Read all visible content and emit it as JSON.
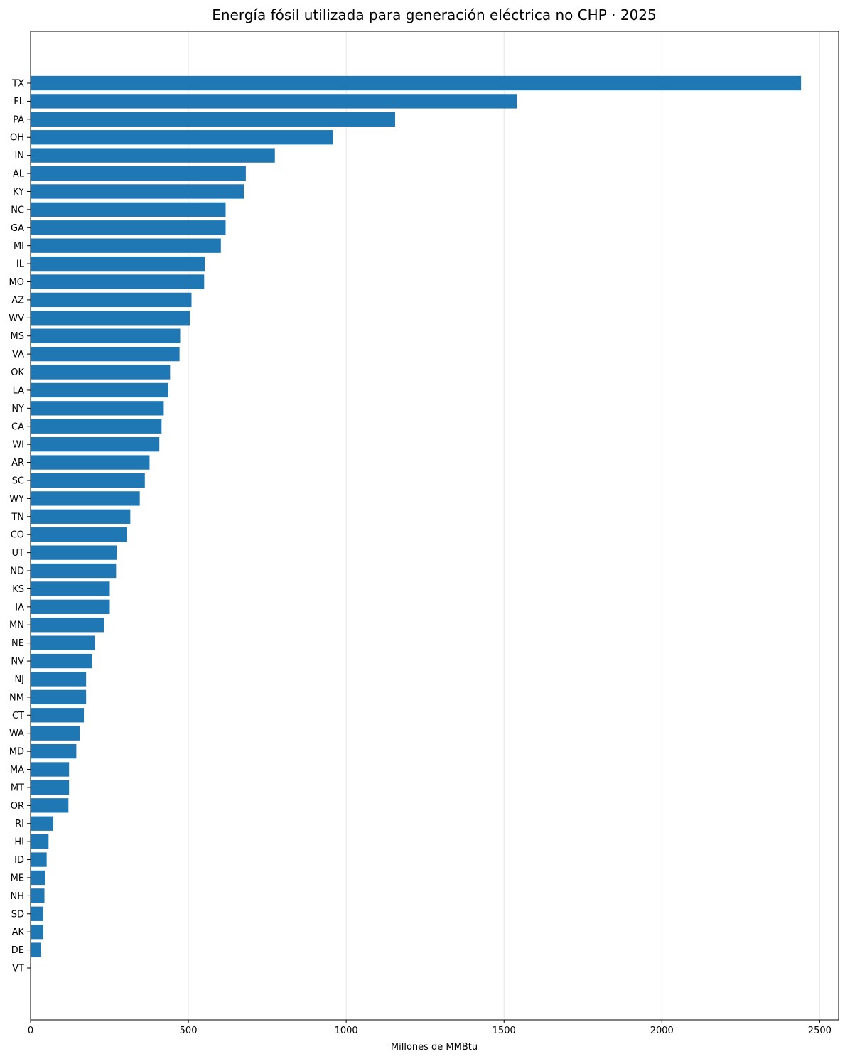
{
  "chart_data": {
    "type": "bar",
    "orientation": "horizontal",
    "title": "Energía fósil utilizada para generación eléctrica no CHP · 2025",
    "xlabel": "Millones de MMBtu",
    "ylabel": "",
    "xlim": [
      0,
      2560
    ],
    "xticks": [
      0,
      500,
      1000,
      1500,
      2000,
      2500
    ],
    "grid": "x",
    "bar_color": "#1f77b4",
    "categories": [
      "TX",
      "FL",
      "PA",
      "OH",
      "IN",
      "AL",
      "KY",
      "NC",
      "GA",
      "MI",
      "IL",
      "MO",
      "AZ",
      "WV",
      "MS",
      "VA",
      "OK",
      "LA",
      "NY",
      "CA",
      "WI",
      "AR",
      "SC",
      "WY",
      "TN",
      "CO",
      "UT",
      "ND",
      "KS",
      "IA",
      "MN",
      "NE",
      "NV",
      "NJ",
      "NM",
      "CT",
      "WA",
      "MD",
      "MA",
      "MT",
      "OR",
      "RI",
      "HI",
      "ID",
      "ME",
      "NH",
      "SD",
      "AK",
      "DE",
      "VT"
    ],
    "values": [
      2441,
      1541,
      1155,
      958,
      774,
      682,
      676,
      618,
      618,
      603,
      552,
      550,
      510,
      505,
      474,
      472,
      442,
      436,
      422,
      415,
      408,
      377,
      362,
      346,
      316,
      305,
      273,
      271,
      251,
      251,
      233,
      204,
      195,
      176,
      176,
      169,
      156,
      145,
      122,
      122,
      120,
      72,
      57,
      51,
      47,
      44,
      40,
      40,
      33,
      0
    ]
  }
}
